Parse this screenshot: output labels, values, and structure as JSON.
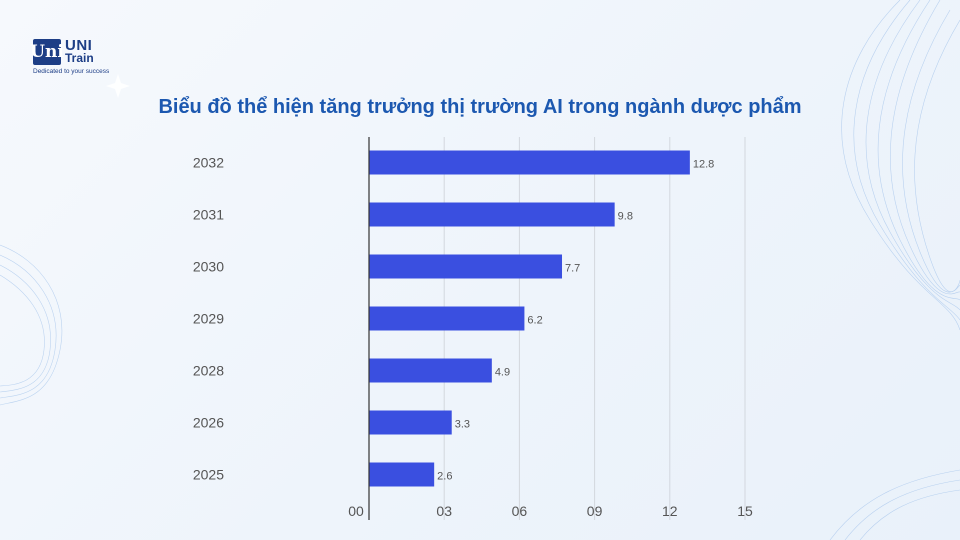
{
  "logo": {
    "mark": "Uni",
    "name_top": "UNI",
    "name_bottom": "Train",
    "tagline": "Dedicated to your success"
  },
  "colors": {
    "bar": "#3a4fe0",
    "title": "#1c58b0",
    "axis": "#333333",
    "grid": "#d3d7de",
    "tick_text": "#555555"
  },
  "chart_data": {
    "type": "bar",
    "orientation": "horizontal",
    "title": "Biểu đồ thể hiện tăng trưởng thị trường AI trong ngành dược phẩm",
    "categories": [
      "2032",
      "2031",
      "2030",
      "2029",
      "2028",
      "2026",
      "2025"
    ],
    "values": [
      12.8,
      9.8,
      7.7,
      6.2,
      4.9,
      3.3,
      2.6
    ],
    "value_labels": [
      "12.8",
      "9.8",
      "7.7",
      "6.2",
      "4.9",
      "3.3",
      "2.6"
    ],
    "x_ticks": [
      0,
      3,
      6,
      9,
      12,
      15
    ],
    "x_tick_labels": [
      "00",
      "03",
      "06",
      "09",
      "12",
      "15"
    ],
    "xlim": [
      0,
      15
    ],
    "grid": true,
    "xlabel": "",
    "ylabel": ""
  }
}
